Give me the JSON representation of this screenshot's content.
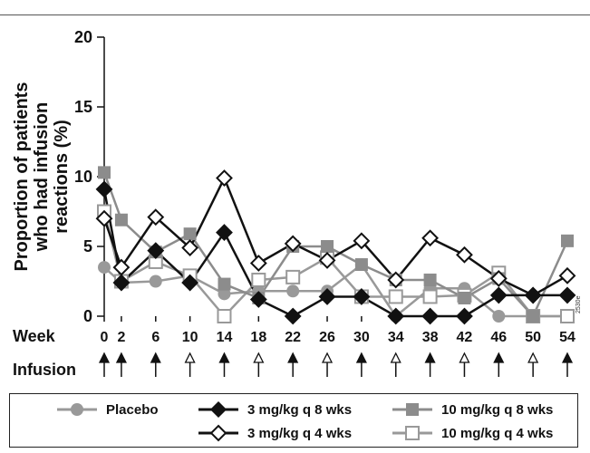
{
  "chart_data": {
    "type": "line",
    "ylabel": "Proportion of patients who had infusion reactions (%)",
    "ylabel_lines": [
      "Proportion of patients",
      "who had infusion",
      "reactions (%)"
    ],
    "xlabel": "Week",
    "ylim": [
      0,
      20
    ],
    "yticks": [
      0,
      5,
      10,
      15,
      20
    ],
    "x": [
      0,
      2,
      6,
      10,
      14,
      18,
      22,
      26,
      30,
      34,
      38,
      42,
      46,
      50,
      54
    ],
    "infusion_label": "Infusion",
    "infusion_arrows": [
      "filled",
      "filled",
      "filled",
      "open",
      "filled",
      "open",
      "filled",
      "open",
      "filled",
      "open",
      "filled",
      "open",
      "filled",
      "open",
      "filled"
    ],
    "figure_code": "2530e",
    "series": [
      {
        "name": "Placebo",
        "marker": "circle",
        "fill": "filled",
        "color": "#999999",
        "values": [
          3.5,
          2.4,
          2.5,
          2.9,
          1.6,
          1.8,
          1.8,
          1.8,
          3.7,
          0,
          2.0,
          2.0,
          0,
          0,
          0
        ]
      },
      {
        "name": "3 mg/kg q 8 wks",
        "marker": "diamond",
        "fill": "filled",
        "color": "#111111",
        "values": [
          9.1,
          2.4,
          4.7,
          2.4,
          6.0,
          1.2,
          0,
          1.4,
          1.4,
          0,
          0,
          0,
          1.5,
          1.5,
          1.5
        ]
      },
      {
        "name": "10 mg/kg q 8 wks",
        "marker": "square",
        "fill": "filled",
        "color": "#8c8c8c",
        "values": [
          10.3,
          6.9,
          4.6,
          5.9,
          2.3,
          1.3,
          5.0,
          5.0,
          3.7,
          2.6,
          2.6,
          1.3,
          2.7,
          0,
          5.4
        ]
      },
      {
        "name": "3 mg/kg q 4 wks",
        "marker": "diamond",
        "fill": "open",
        "color": "#111111",
        "values": [
          7.0,
          3.5,
          7.1,
          4.9,
          9.9,
          3.8,
          5.2,
          4.0,
          5.4,
          2.6,
          5.6,
          4.4,
          2.7,
          1.5,
          2.9
        ]
      },
      {
        "name": "10 mg/kg q 4 wks",
        "marker": "square",
        "fill": "open",
        "color": "#999999",
        "values": [
          7.5,
          2.5,
          3.9,
          2.9,
          0,
          2.6,
          2.8,
          4.2,
          1.4,
          1.4,
          1.4,
          1.5,
          3.1,
          0,
          0
        ]
      }
    ],
    "legend": {
      "rows": [
        [
          "Placebo",
          "3 mg/kg q 8 wks",
          "10 mg/kg q 8 wks"
        ],
        [
          "",
          "3 mg/kg q 4 wks",
          "10 mg/kg q 4 wks"
        ]
      ],
      "placement": "bottom"
    }
  }
}
